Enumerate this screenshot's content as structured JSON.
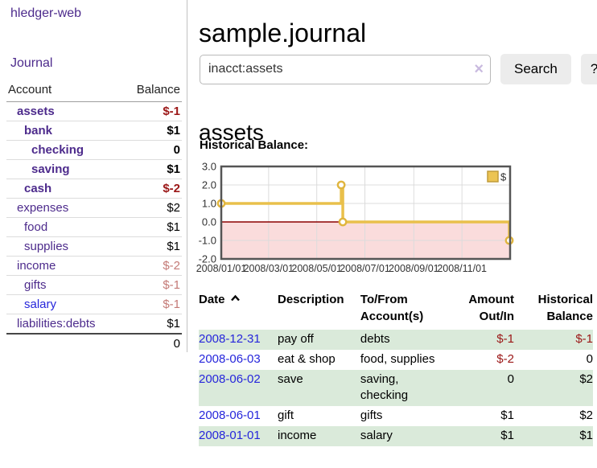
{
  "app": {
    "brand": "hledger-web",
    "nav_journal": "Journal"
  },
  "sidebar": {
    "accounts_table": {
      "col_account": "Account",
      "col_balance": "Balance",
      "rows": [
        {
          "name": "assets",
          "depth": 0,
          "bold": true,
          "link": "purple",
          "balance": "$-1",
          "balance_class": "neg"
        },
        {
          "name": "bank",
          "depth": 1,
          "bold": true,
          "link": "purple",
          "balance": "$1",
          "balance_class": ""
        },
        {
          "name": "checking",
          "depth": 2,
          "bold": true,
          "link": "purple",
          "balance": "0",
          "balance_class": ""
        },
        {
          "name": "saving",
          "depth": 2,
          "bold": true,
          "link": "purple",
          "balance": "$1",
          "balance_class": ""
        },
        {
          "name": "cash",
          "depth": 1,
          "bold": true,
          "link": "purple",
          "balance": "$-2",
          "balance_class": "neg"
        },
        {
          "name": "expenses",
          "depth": 0,
          "bold": false,
          "link": "purple",
          "balance": "$2",
          "balance_class": ""
        },
        {
          "name": "food",
          "depth": 1,
          "bold": false,
          "link": "purple",
          "balance": "$1",
          "balance_class": ""
        },
        {
          "name": "supplies",
          "depth": 1,
          "bold": false,
          "link": "purple",
          "balance": "$1",
          "balance_class": ""
        },
        {
          "name": "income",
          "depth": 0,
          "bold": false,
          "link": "purple",
          "balance": "$-2",
          "balance_class": "negl"
        },
        {
          "name": "gifts",
          "depth": 1,
          "bold": false,
          "link": "purple",
          "balance": "$-1",
          "balance_class": "negl"
        },
        {
          "name": "salary",
          "depth": 1,
          "bold": false,
          "link": "blue",
          "balance": "$-1",
          "balance_class": "negl"
        },
        {
          "name": "liabilities:debts",
          "depth": 0,
          "bold": false,
          "link": "purple",
          "balance": "$1",
          "balance_class": ""
        }
      ],
      "total": "0"
    }
  },
  "header": {
    "title": "sample.journal"
  },
  "search": {
    "value": "inacct:assets",
    "clear_icon": "×",
    "button": "Search",
    "help_button": "?"
  },
  "account_page": {
    "heading": "assets",
    "chart_label": "Historical Balance:"
  },
  "chart_data": {
    "type": "line",
    "step": true,
    "title": "Historical Balance",
    "series": [
      {
        "name": "$",
        "points": [
          [
            "2008-01-01",
            1
          ],
          [
            "2008-06-01",
            2
          ],
          [
            "2008-06-03",
            0
          ],
          [
            "2008-12-31",
            -1
          ]
        ]
      }
    ],
    "x_domain": [
      "2008-01-01",
      "2009-01-01"
    ],
    "ylim": [
      -2,
      3
    ],
    "yticks": [
      3.0,
      2.0,
      1.0,
      0.0,
      -1.0,
      -2.0
    ],
    "xtick_labels": [
      "2008/01/01",
      "2008/03/01",
      "2008/05/01",
      "2008/07/01",
      "2008/09/01",
      "2008/11/01"
    ],
    "grid": true,
    "negative_region_shaded": true,
    "legend": {
      "label": "$",
      "position": "top-right"
    },
    "colors": {
      "line": "#e9c04b",
      "marker_fill": "#ffffff",
      "marker_stroke": "#e0b53e",
      "zero_line": "#8b0000",
      "negative_bg": "#fadcdc",
      "grid": "#dcdcdc",
      "border": "#555555",
      "legend_fill": "#ecc453",
      "legend_border": "#c09c3a",
      "tick_text": "#333333"
    }
  },
  "register_table": {
    "columns": [
      "Date",
      "Description",
      "To/From Account(s)",
      "Amount Out/In",
      "Historical Balance"
    ],
    "sort_indicator": "chevron-up",
    "rows": [
      {
        "date": "2008-12-31",
        "description": "pay off",
        "to_from": "debts",
        "amount": "$-1",
        "balance": "$-1"
      },
      {
        "date": "2008-06-03",
        "description": "eat & shop",
        "to_from": "food, supplies",
        "amount": "$-2",
        "balance": "0"
      },
      {
        "date": "2008-06-02",
        "description": "save",
        "to_from": "saving,\nchecking",
        "amount": "0",
        "balance": "$2"
      },
      {
        "date": "2008-06-01",
        "description": "gift",
        "to_from": "gifts",
        "amount": "$1",
        "balance": "$2"
      },
      {
        "date": "2008-01-01",
        "description": "income",
        "to_from": "salary",
        "amount": "$1",
        "balance": "$1"
      }
    ]
  },
  "colors": {
    "link_purple": "#4d2b8c",
    "link_blue": "#2626db",
    "negative": "#9b1717",
    "negative_light": "#c47a76",
    "row_green": "#daeada",
    "button_bg": "#ececec"
  }
}
